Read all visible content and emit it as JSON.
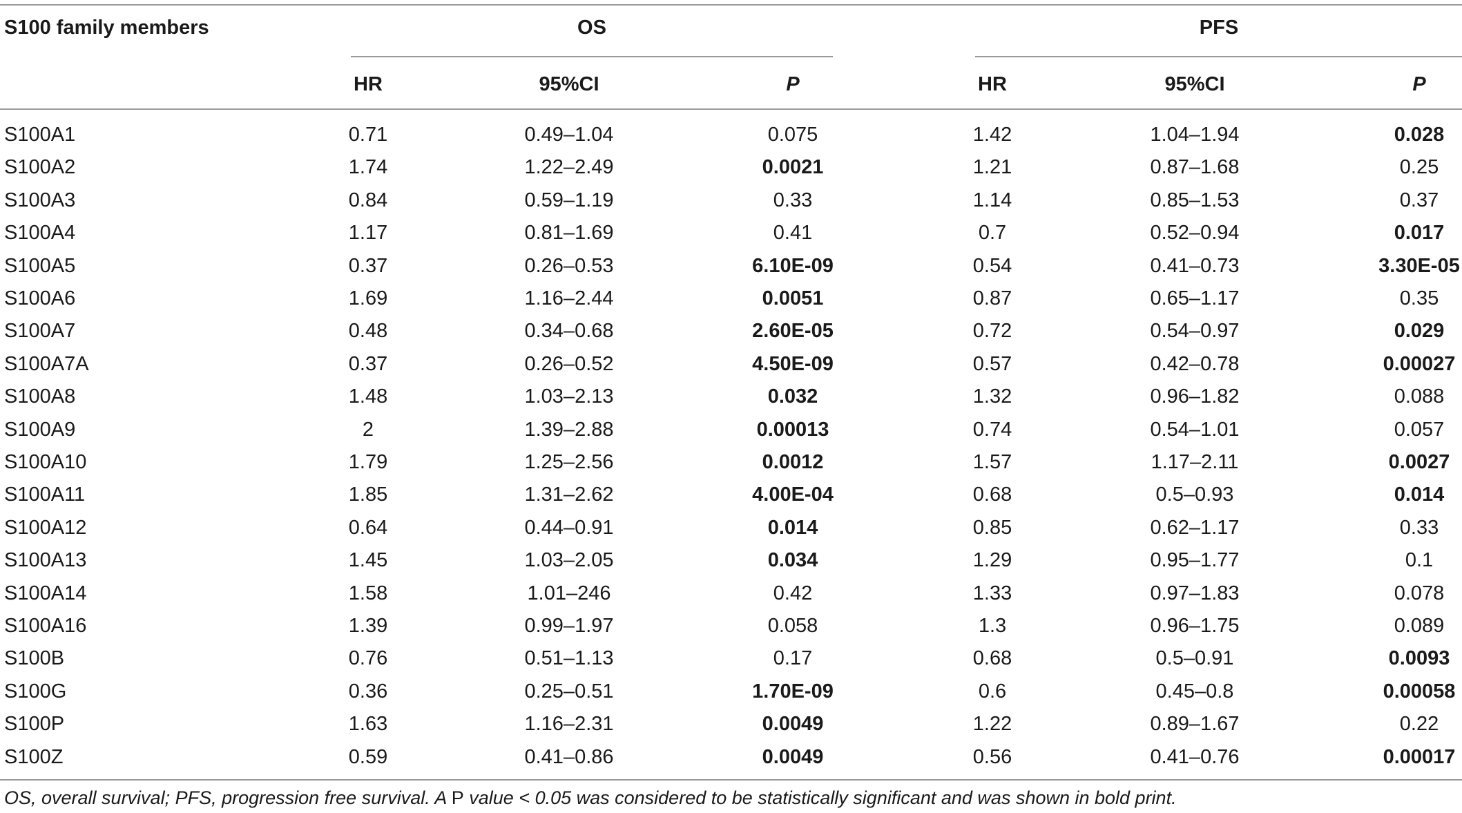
{
  "table": {
    "col_header": "S100 family members",
    "group_os": "OS",
    "group_pfs": "PFS",
    "sub_headers": {
      "hr": "HR",
      "ci": "95%CI",
      "p": "P"
    },
    "rows": [
      {
        "name": "S100A1",
        "os_hr": "0.71",
        "os_ci": "0.49–1.04",
        "os_p": "0.075",
        "os_sig": false,
        "pfs_hr": "1.42",
        "pfs_ci": "1.04–1.94",
        "pfs_p": "0.028",
        "pfs_sig": true
      },
      {
        "name": "S100A2",
        "os_hr": "1.74",
        "os_ci": "1.22–2.49",
        "os_p": "0.0021",
        "os_sig": true,
        "pfs_hr": "1.21",
        "pfs_ci": "0.87–1.68",
        "pfs_p": "0.25",
        "pfs_sig": false
      },
      {
        "name": "S100A3",
        "os_hr": "0.84",
        "os_ci": "0.59–1.19",
        "os_p": "0.33",
        "os_sig": false,
        "pfs_hr": "1.14",
        "pfs_ci": "0.85–1.53",
        "pfs_p": "0.37",
        "pfs_sig": false
      },
      {
        "name": "S100A4",
        "os_hr": "1.17",
        "os_ci": "0.81–1.69",
        "os_p": "0.41",
        "os_sig": false,
        "pfs_hr": "0.7",
        "pfs_ci": "0.52–0.94",
        "pfs_p": "0.017",
        "pfs_sig": true
      },
      {
        "name": "S100A5",
        "os_hr": "0.37",
        "os_ci": "0.26–0.53",
        "os_p": "6.10E-09",
        "os_sig": true,
        "pfs_hr": "0.54",
        "pfs_ci": "0.41–0.73",
        "pfs_p": "3.30E-05",
        "pfs_sig": true
      },
      {
        "name": "S100A6",
        "os_hr": "1.69",
        "os_ci": "1.16–2.44",
        "os_p": "0.0051",
        "os_sig": true,
        "pfs_hr": "0.87",
        "pfs_ci": "0.65–1.17",
        "pfs_p": "0.35",
        "pfs_sig": false
      },
      {
        "name": "S100A7",
        "os_hr": "0.48",
        "os_ci": "0.34–0.68",
        "os_p": "2.60E-05",
        "os_sig": true,
        "pfs_hr": "0.72",
        "pfs_ci": "0.54–0.97",
        "pfs_p": "0.029",
        "pfs_sig": true
      },
      {
        "name": "S100A7A",
        "os_hr": "0.37",
        "os_ci": "0.26–0.52",
        "os_p": "4.50E-09",
        "os_sig": true,
        "pfs_hr": "0.57",
        "pfs_ci": "0.42–0.78",
        "pfs_p": "0.00027",
        "pfs_sig": true
      },
      {
        "name": "S100A8",
        "os_hr": "1.48",
        "os_ci": "1.03–2.13",
        "os_p": "0.032",
        "os_sig": true,
        "pfs_hr": "1.32",
        "pfs_ci": "0.96–1.82",
        "pfs_p": "0.088",
        "pfs_sig": false
      },
      {
        "name": "S100A9",
        "os_hr": "2",
        "os_ci": "1.39–2.88",
        "os_p": "0.00013",
        "os_sig": true,
        "pfs_hr": "0.74",
        "pfs_ci": "0.54–1.01",
        "pfs_p": "0.057",
        "pfs_sig": false
      },
      {
        "name": "S100A10",
        "os_hr": "1.79",
        "os_ci": "1.25–2.56",
        "os_p": "0.0012",
        "os_sig": true,
        "pfs_hr": "1.57",
        "pfs_ci": "1.17–2.11",
        "pfs_p": "0.0027",
        "pfs_sig": true
      },
      {
        "name": "S100A11",
        "os_hr": "1.85",
        "os_ci": "1.31–2.62",
        "os_p": "4.00E-04",
        "os_sig": true,
        "pfs_hr": "0.68",
        "pfs_ci": "0.5–0.93",
        "pfs_p": "0.014",
        "pfs_sig": true
      },
      {
        "name": "S100A12",
        "os_hr": "0.64",
        "os_ci": "0.44–0.91",
        "os_p": "0.014",
        "os_sig": true,
        "pfs_hr": "0.85",
        "pfs_ci": "0.62–1.17",
        "pfs_p": "0.33",
        "pfs_sig": false
      },
      {
        "name": "S100A13",
        "os_hr": "1.45",
        "os_ci": "1.03–2.05",
        "os_p": "0.034",
        "os_sig": true,
        "pfs_hr": "1.29",
        "pfs_ci": "0.95–1.77",
        "pfs_p": "0.1",
        "pfs_sig": false
      },
      {
        "name": "S100A14",
        "os_hr": "1.58",
        "os_ci": "1.01–246",
        "os_p": "0.42",
        "os_sig": false,
        "pfs_hr": "1.33",
        "pfs_ci": "0.97–1.83",
        "pfs_p": "0.078",
        "pfs_sig": false
      },
      {
        "name": "S100A16",
        "os_hr": "1.39",
        "os_ci": "0.99–1.97",
        "os_p": "0.058",
        "os_sig": false,
        "pfs_hr": "1.3",
        "pfs_ci": "0.96–1.75",
        "pfs_p": "0.089",
        "pfs_sig": false
      },
      {
        "name": "S100B",
        "os_hr": "0.76",
        "os_ci": "0.51–1.13",
        "os_p": "0.17",
        "os_sig": false,
        "pfs_hr": "0.68",
        "pfs_ci": "0.5–0.91",
        "pfs_p": "0.0093",
        "pfs_sig": true
      },
      {
        "name": "S100G",
        "os_hr": "0.36",
        "os_ci": "0.25–0.51",
        "os_p": "1.70E-09",
        "os_sig": true,
        "pfs_hr": "0.6",
        "pfs_ci": "0.45–0.8",
        "pfs_p": "0.00058",
        "pfs_sig": true
      },
      {
        "name": "S100P",
        "os_hr": "1.63",
        "os_ci": "1.16–2.31",
        "os_p": "0.0049",
        "os_sig": true,
        "pfs_hr": "1.22",
        "pfs_ci": "0.89–1.67",
        "pfs_p": "0.22",
        "pfs_sig": false
      },
      {
        "name": "S100Z",
        "os_hr": "0.59",
        "os_ci": "0.41–0.86",
        "os_p": "0.0049",
        "os_sig": true,
        "pfs_hr": "0.56",
        "pfs_ci": "0.41–0.76",
        "pfs_p": "0.00017",
        "pfs_sig": true
      }
    ]
  },
  "footnote": {
    "part1": "OS, overall survival; PFS, progression free survival. A ",
    "part2": "P",
    "part3": " value < 0.05 was considered to be statistically significant and was shown in bold print."
  },
  "colors": {
    "text": "#1a1a1a",
    "rule": "#9a9a9a"
  }
}
